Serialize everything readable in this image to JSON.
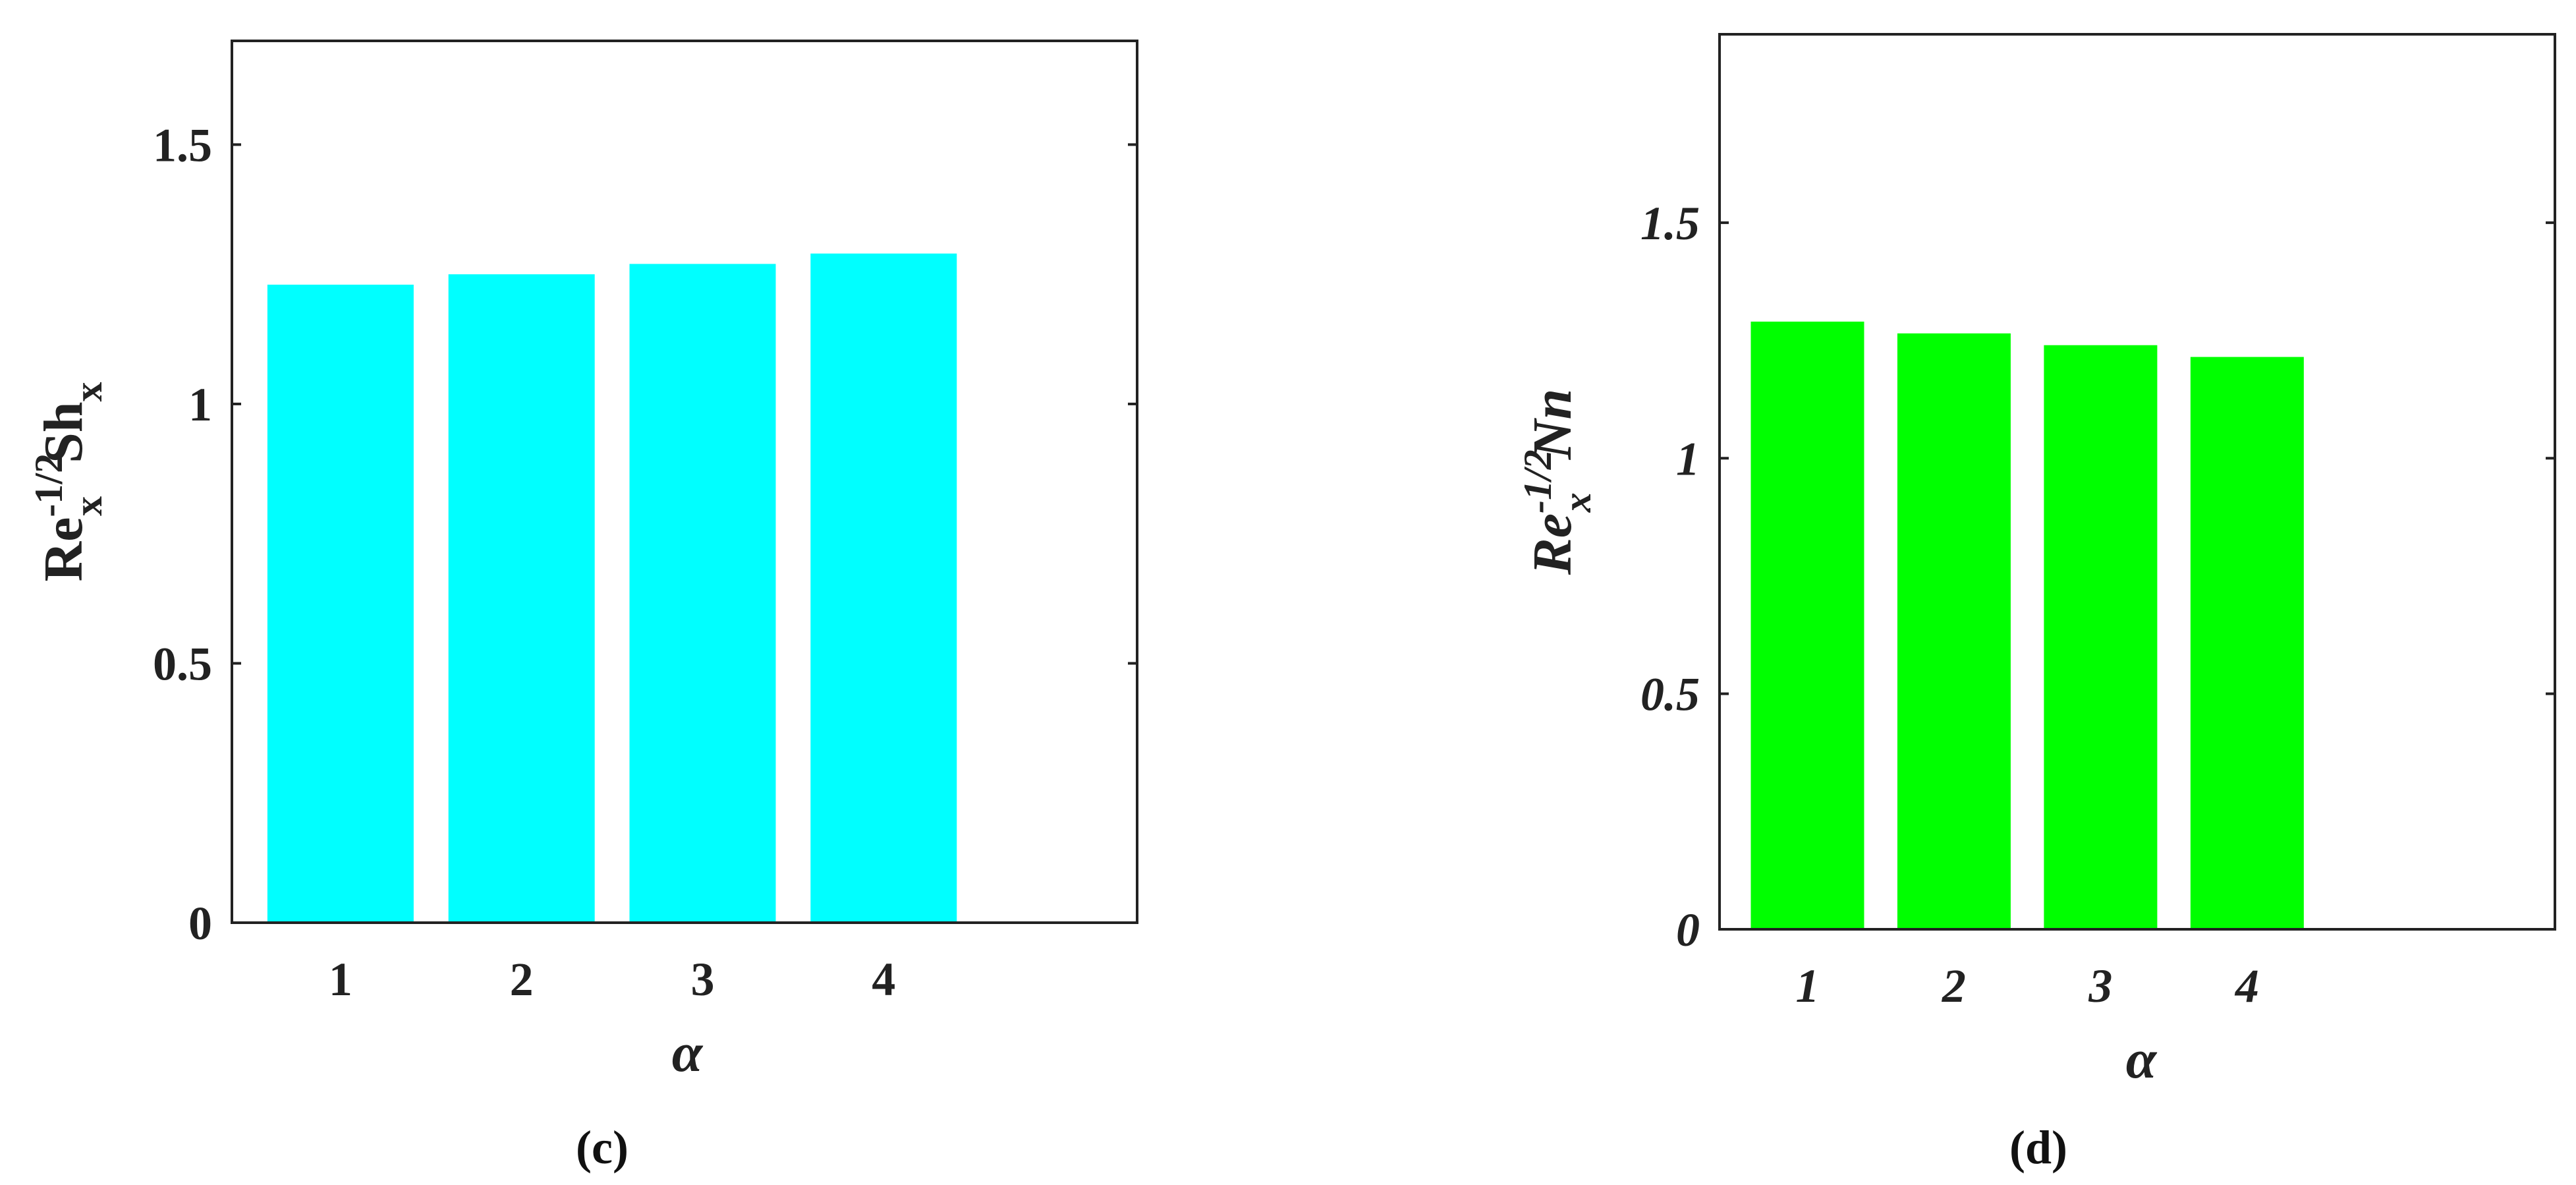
{
  "chart_data": [
    {
      "type": "bar",
      "panel": "(c)",
      "categories": [
        "1",
        "2",
        "3",
        "4"
      ],
      "values": [
        1.23,
        1.25,
        1.27,
        1.29
      ],
      "xlabel": "α",
      "ylabel": "Re_x^{-1/2} Sh_x",
      "ylabel_parts": {
        "base": "Re",
        "sub": "x",
        "sup": "-1/2",
        "base2": "Sh",
        "sub2": "x"
      },
      "ylim": [
        0,
        1.7
      ],
      "yticks": [
        0,
        0.5,
        1,
        1.5
      ],
      "ytick_labels": [
        "0",
        "0.5",
        "1",
        "1.5"
      ],
      "italic": false,
      "bar_color": "#00ffff",
      "grid": false
    },
    {
      "type": "bar",
      "panel": "(d)",
      "categories": [
        "1",
        "2",
        "3",
        "4"
      ],
      "values": [
        1.29,
        1.265,
        1.24,
        1.215
      ],
      "xlabel": "α",
      "ylabel": "Re_x^{-1/2} Nn",
      "ylabel_parts": {
        "base": "Re",
        "sub": "x",
        "sup": "-1/2",
        "base2": "Nn",
        "sub2": ""
      },
      "ylim": [
        0,
        1.9
      ],
      "xlim": [
        0.4,
        6.1
      ],
      "yticks": [
        0,
        0.5,
        1,
        1.5
      ],
      "ytick_labels": [
        "0",
        "0.5",
        "1",
        "1.5"
      ],
      "italic": true,
      "bar_color": "#00ff00",
      "grid": false
    }
  ]
}
